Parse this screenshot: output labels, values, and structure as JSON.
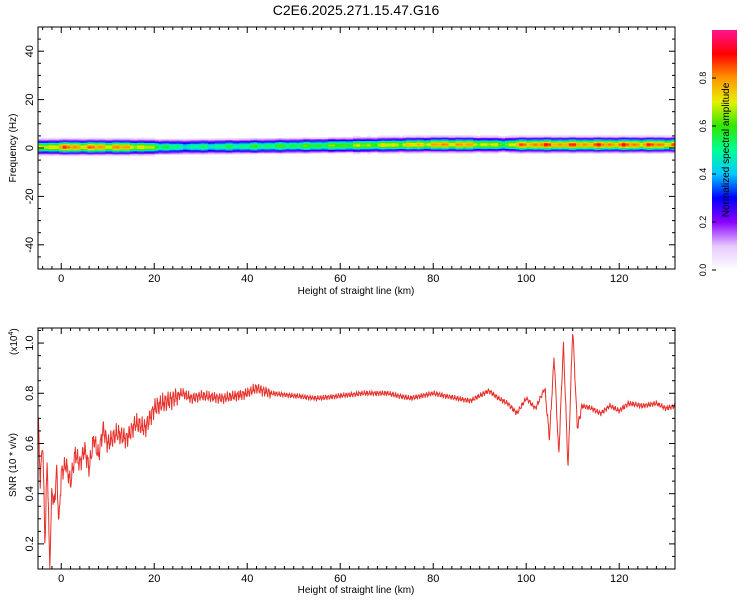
{
  "title": "C2E6.2025.271.15.47.G16",
  "chart_data": [
    {
      "type": "heatmap",
      "xlabel": "Height of straight line (km)",
      "ylabel": "Frequency (Hz)",
      "xlim": [
        -5,
        132
      ],
      "ylim": [
        -50,
        50
      ],
      "xticks": [
        0,
        20,
        40,
        60,
        80,
        100,
        120
      ],
      "yticks": [
        -40,
        -20,
        0,
        20,
        40
      ],
      "colorbar": {
        "label": "Normalized spectral amplitude",
        "range": [
          0,
          1
        ],
        "ticks": [
          0.0,
          0.2,
          0.4,
          0.6,
          0.8
        ],
        "colors": [
          "#ffffff",
          "#e6c8ff",
          "#8a00ff",
          "#0000ff",
          "#00c8ff",
          "#00ff96",
          "#32e600",
          "#e6f000",
          "#ff9600",
          "#ff0000",
          "#ff1493"
        ]
      },
      "band": {
        "center_freq_profile": [
          [
            -5,
            0.5
          ],
          [
            20,
            0.5
          ],
          [
            40,
            0.8
          ],
          [
            60,
            1.2
          ],
          [
            80,
            1.6
          ],
          [
            100,
            1.5
          ],
          [
            132,
            1.5
          ]
        ],
        "peak_amplitude_profile": [
          [
            -5,
            0.7
          ],
          [
            0,
            0.9
          ],
          [
            15,
            0.85
          ],
          [
            25,
            0.55
          ],
          [
            40,
            0.6
          ],
          [
            55,
            0.65
          ],
          [
            65,
            0.72
          ],
          [
            75,
            0.8
          ],
          [
            85,
            0.88
          ],
          [
            95,
            0.7
          ],
          [
            100,
            0.92
          ],
          [
            110,
            0.9
          ],
          [
            120,
            0.92
          ],
          [
            132,
            0.9
          ]
        ]
      }
    },
    {
      "type": "line",
      "xlabel": "Height of straight line (km)",
      "ylabel": "SNR (10 * v/v)",
      "y_multiplier": "(x10",
      "y_multiplier_exp": "4",
      "y_multiplier_close": ")",
      "xlim": [
        -5,
        132
      ],
      "ylim": [
        0.1,
        1.06
      ],
      "xticks": [
        0,
        20,
        40,
        60,
        80,
        100,
        120
      ],
      "yticks": [
        0.2,
        0.4,
        0.6,
        0.8,
        1.0
      ],
      "line_color": "#e8302a",
      "series": [
        {
          "x": [
            -5,
            -4.5,
            -4,
            -3.5,
            -3,
            -2.5,
            -2,
            -1.5,
            -1,
            -0.5,
            0,
            1,
            2,
            3,
            4,
            5,
            6,
            7,
            8,
            9,
            10,
            12,
            14,
            16,
            18,
            20,
            22,
            24,
            26,
            28,
            30,
            35,
            40,
            42,
            45,
            50,
            55,
            60,
            65,
            70,
            75,
            80,
            85,
            88,
            90,
            92,
            94,
            96,
            98,
            100,
            102,
            104,
            105,
            106,
            107,
            108,
            109,
            110,
            111,
            112,
            114,
            116,
            118,
            120,
            122,
            125,
            128,
            130,
            132
          ],
          "y": [
            0.72,
            0.45,
            0.62,
            0.2,
            0.55,
            0.1,
            0.42,
            0.35,
            0.5,
            0.28,
            0.48,
            0.52,
            0.44,
            0.56,
            0.52,
            0.58,
            0.5,
            0.62,
            0.55,
            0.66,
            0.6,
            0.64,
            0.62,
            0.68,
            0.66,
            0.74,
            0.76,
            0.78,
            0.8,
            0.78,
            0.79,
            0.78,
            0.8,
            0.82,
            0.8,
            0.79,
            0.78,
            0.79,
            0.8,
            0.8,
            0.78,
            0.8,
            0.78,
            0.77,
            0.79,
            0.81,
            0.78,
            0.76,
            0.72,
            0.78,
            0.74,
            0.82,
            0.62,
            0.95,
            0.55,
            1.0,
            0.5,
            1.06,
            0.66,
            0.75,
            0.74,
            0.72,
            0.75,
            0.73,
            0.76,
            0.75,
            0.76,
            0.74,
            0.75
          ]
        }
      ]
    }
  ]
}
